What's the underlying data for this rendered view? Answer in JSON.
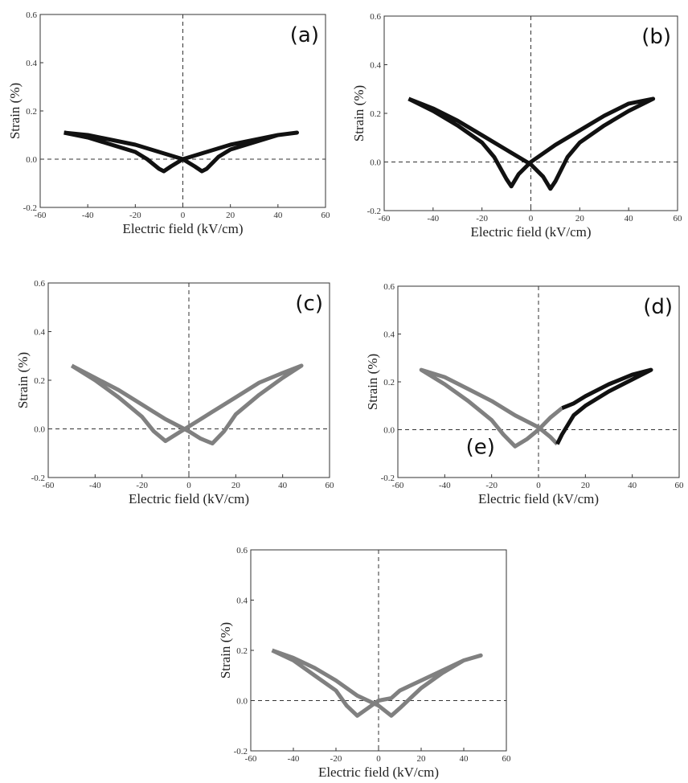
{
  "chart_data": [
    {
      "type": "line",
      "annotation": "(a)",
      "x_label": "Electric field (kV/cm)",
      "y_label": "Strain (%)",
      "xlim": [
        -60,
        60
      ],
      "ylim": [
        -0.2,
        0.6
      ],
      "xticks": [
        -60,
        -40,
        -20,
        0,
        20,
        40,
        60
      ],
      "yticks": [
        -0.2,
        {
          "value": 0,
          "label": "0.0"
        },
        0.2,
        0.4,
        0.6
      ],
      "series": [
        {
          "color": "#111111",
          "x": [
            -50,
            -40,
            -30,
            -20,
            -10,
            0,
            5,
            8,
            10,
            15,
            20,
            30,
            40,
            48,
            40,
            30,
            20,
            10,
            0,
            -5,
            -8,
            -10,
            -15,
            -20,
            -30,
            -40,
            -50
          ],
          "values": [
            0.11,
            0.1,
            0.08,
            0.06,
            0.03,
            0.0,
            -0.03,
            -0.05,
            -0.04,
            0.01,
            0.04,
            0.07,
            0.1,
            0.11,
            0.1,
            0.08,
            0.06,
            0.03,
            0.0,
            -0.03,
            -0.05,
            -0.04,
            0.0,
            0.03,
            0.06,
            0.09,
            0.11
          ]
        }
      ]
    },
    {
      "type": "line",
      "annotation": "(b)",
      "x_label": "Electric field (kV/cm)",
      "y_label": "Strain (%)",
      "xlim": [
        -60,
        60
      ],
      "ylim": [
        -0.2,
        0.6
      ],
      "xticks": [
        -60,
        -40,
        -20,
        0,
        20,
        40,
        60
      ],
      "yticks": [
        -0.2,
        {
          "value": 0,
          "label": "0.0"
        },
        0.2,
        0.4,
        0.6
      ],
      "series": [
        {
          "color": "#111111",
          "x": [
            -50,
            -40,
            -30,
            -20,
            -10,
            0,
            5,
            8,
            10,
            15,
            20,
            30,
            40,
            50,
            40,
            30,
            20,
            10,
            0,
            -5,
            -8,
            -10,
            -15,
            -20,
            -30,
            -40,
            -50
          ],
          "values": [
            0.26,
            0.22,
            0.17,
            0.11,
            0.05,
            -0.01,
            -0.06,
            -0.11,
            -0.08,
            0.02,
            0.08,
            0.15,
            0.21,
            0.26,
            0.24,
            0.19,
            0.13,
            0.07,
            0.0,
            -0.05,
            -0.1,
            -0.07,
            0.02,
            0.08,
            0.15,
            0.21,
            0.26
          ]
        }
      ]
    },
    {
      "type": "line",
      "annotation": "(c)",
      "x_label": "Electric field (kV/cm)",
      "y_label": "Strain (%)",
      "xlim": [
        -60,
        60
      ],
      "ylim": [
        -0.2,
        0.6
      ],
      "xticks": [
        -60,
        -40,
        -20,
        0,
        20,
        40,
        60
      ],
      "yticks": [
        -0.2,
        {
          "value": 0,
          "label": "0.0"
        },
        0.2,
        0.4,
        0.6
      ],
      "series": [
        {
          "color": "#808080",
          "x": [
            -50,
            -40,
            -30,
            -20,
            -10,
            0,
            5,
            10,
            15,
            20,
            30,
            40,
            48,
            40,
            30,
            20,
            10,
            0,
            -5,
            -10,
            -15,
            -20,
            -30,
            -40,
            -50
          ],
          "values": [
            0.26,
            0.21,
            0.16,
            0.1,
            0.04,
            -0.01,
            -0.04,
            -0.06,
            -0.01,
            0.06,
            0.14,
            0.21,
            0.26,
            0.23,
            0.19,
            0.13,
            0.07,
            0.01,
            -0.02,
            -0.05,
            -0.01,
            0.05,
            0.13,
            0.2,
            0.26
          ]
        }
      ]
    },
    {
      "type": "line",
      "annotation": "(d)",
      "annotation2": "(e)",
      "annotation2_color": "#808080",
      "x_label": "Electric field (kV/cm)",
      "y_label": "Strain (%)",
      "xlim": [
        -60,
        60
      ],
      "ylim": [
        -0.2,
        0.6
      ],
      "xticks": [
        -60,
        -40,
        -20,
        0,
        20,
        40,
        60
      ],
      "yticks": [
        -0.2,
        {
          "value": 0,
          "label": "0.0"
        },
        0.2,
        0.4,
        0.6
      ],
      "series": [
        {
          "color": "#808080",
          "x": [
            10,
            5,
            0,
            -5,
            -10,
            -15,
            -20,
            -30,
            -40,
            -50,
            -40,
            -30,
            -20,
            -10,
            0,
            5,
            8
          ],
          "values": [
            0.09,
            0.05,
            0.0,
            -0.04,
            -0.07,
            -0.02,
            0.04,
            0.12,
            0.19,
            0.25,
            0.22,
            0.17,
            0.12,
            0.06,
            0.01,
            -0.03,
            -0.06
          ]
        },
        {
          "color": "#111111",
          "x": [
            8,
            10,
            15,
            20,
            30,
            40,
            48,
            40,
            30,
            20,
            15,
            10
          ],
          "values": [
            -0.06,
            -0.02,
            0.06,
            0.1,
            0.16,
            0.21,
            0.25,
            0.23,
            0.19,
            0.14,
            0.11,
            0.09
          ]
        }
      ]
    },
    {
      "type": "line",
      "x_label": "Electric field (kV/cm)",
      "y_label": "Strain (%)",
      "xlim": [
        -60,
        60
      ],
      "ylim": [
        -0.2,
        0.6
      ],
      "xticks": [
        -60,
        -40,
        -20,
        0,
        20,
        40,
        60
      ],
      "yticks": [
        -0.2,
        {
          "value": 0,
          "label": "0.0"
        },
        0.2,
        0.4,
        0.6
      ],
      "series": [
        {
          "color": "#808080",
          "x": [
            -50,
            -40,
            -30,
            -20,
            -10,
            -5,
            0,
            6,
            10,
            20,
            30,
            40,
            48,
            40,
            30,
            20,
            10,
            6,
            0,
            -5,
            -10,
            -15,
            -20,
            -30,
            -40,
            -50
          ],
          "values": [
            0.2,
            0.17,
            0.13,
            0.08,
            0.02,
            0.0,
            -0.02,
            -0.06,
            -0.03,
            0.05,
            0.11,
            0.16,
            0.18,
            0.16,
            0.12,
            0.08,
            0.04,
            0.01,
            0.0,
            -0.03,
            -0.06,
            -0.02,
            0.04,
            0.1,
            0.16,
            0.2
          ]
        }
      ]
    }
  ]
}
